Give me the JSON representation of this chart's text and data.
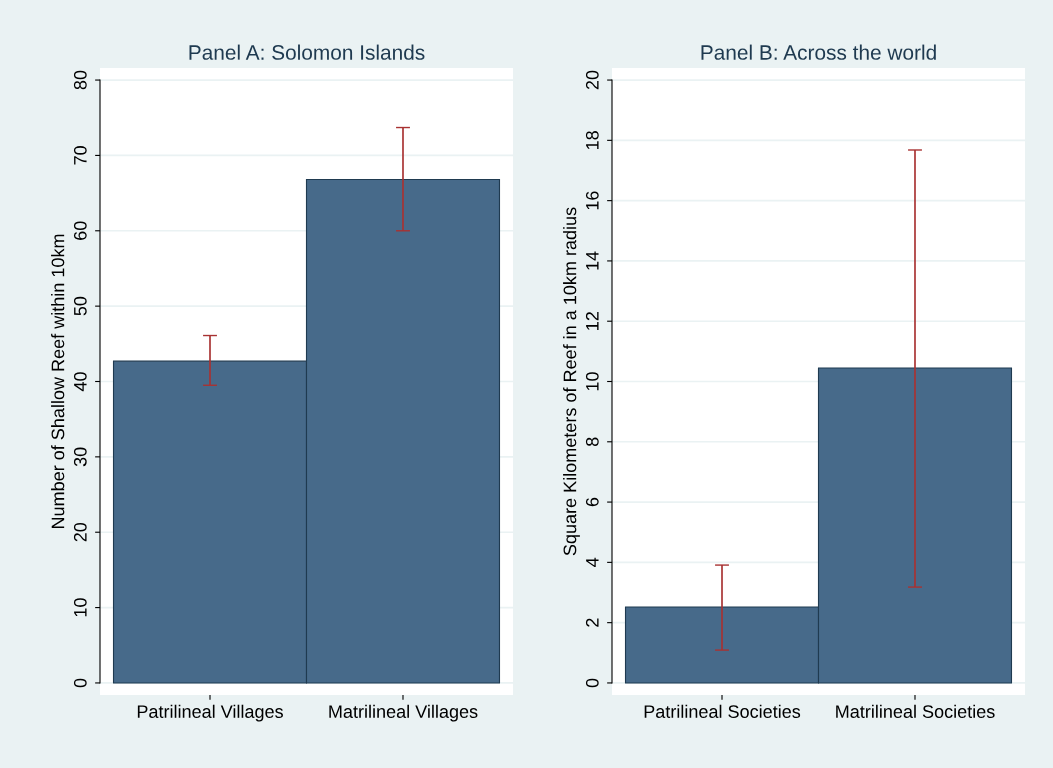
{
  "chart_data": [
    {
      "type": "bar",
      "title": "Panel A: Solomon Islands",
      "ylabel": "Number of Shallow Reef within 10km",
      "categories": [
        "Patrilineal Villages",
        "Matrilineal Villages"
      ],
      "values": [
        42.7,
        66.8
      ],
      "colors": [
        "#476a8a",
        "#476a8a"
      ],
      "errors": [
        [
          39.5,
          46.1
        ],
        [
          60.0,
          73.7
        ]
      ],
      "ylim": [
        0,
        80
      ],
      "yticks": [
        0,
        10,
        20,
        30,
        40,
        50,
        60,
        70,
        80
      ],
      "grid": "y",
      "legend": false
    },
    {
      "type": "bar",
      "title": "Panel B: Across the world",
      "ylabel": "Square Kilometers of Reef in a 10km radius",
      "categories": [
        "Patrilineal Societies",
        "Matrilineal Societies"
      ],
      "values": [
        2.52,
        10.45
      ],
      "colors": [
        "#476a8a",
        "#476a8a"
      ],
      "errors": [
        [
          1.09,
          3.91
        ],
        [
          3.18,
          17.68
        ]
      ],
      "ylim": [
        0,
        20
      ],
      "yticks": [
        0,
        2,
        4,
        6,
        8,
        10,
        12,
        14,
        16,
        18,
        20
      ],
      "grid": "y",
      "legend": false
    }
  ]
}
